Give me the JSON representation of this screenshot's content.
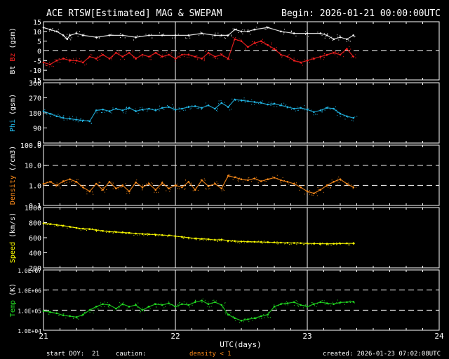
{
  "header": {
    "title": "ACE RTSW[Estimated] MAG & SWEPAM",
    "begin": "Begin: 2026-01-21 00:00:00UTC"
  },
  "footer": {
    "start_doy": "start DOY:  21",
    "caution": "caution:",
    "density_note": "density < 1",
    "created": "created: 2026-01-23 07:02:08UTC"
  },
  "colors": {
    "background": "#000000",
    "frame": "#ffffff",
    "bt": "#ffffff",
    "bz": "#ff2020",
    "phi": "#22b8e8",
    "density": "#ff8c1a",
    "speed": "#ffff00",
    "temp": "#22dd22"
  },
  "chart_data": [
    {
      "type": "scatter",
      "panel": "mag",
      "ylabel_parts": [
        {
          "text": "Bt",
          "color": "#ffffff"
        },
        {
          "text": " ",
          "color": "#ffffff"
        },
        {
          "text": "Bz",
          "color": "#ff2020"
        },
        {
          "text": " (gsm)",
          "color": "#ffffff"
        }
      ],
      "ylim": [
        -15,
        15
      ],
      "yticks": [
        15,
        10,
        5,
        0,
        -5,
        -10,
        -15
      ],
      "dashed": [
        0
      ],
      "series": [
        {
          "key": "bt",
          "color": "#ffffff",
          "x": [
            21.0,
            21.05,
            21.1,
            21.15,
            21.18,
            21.2,
            21.25,
            21.3,
            21.4,
            21.5,
            21.6,
            21.7,
            21.8,
            21.9,
            22.0,
            22.1,
            22.2,
            22.3,
            22.35,
            22.4,
            22.45,
            22.5,
            22.55,
            22.6,
            22.7,
            22.8,
            22.9,
            23.0,
            23.1,
            23.15,
            23.2,
            23.25,
            23.3,
            23.35
          ],
          "y": [
            12,
            11,
            10,
            8,
            6,
            8,
            9,
            8,
            7,
            8,
            8,
            7,
            8,
            8,
            8,
            8,
            9,
            8,
            8,
            8,
            11,
            10,
            10,
            11,
            12,
            10,
            9,
            9,
            9,
            8,
            6,
            7,
            6,
            8
          ]
        },
        {
          "key": "bz",
          "color": "#ff2020",
          "x": [
            21.0,
            21.05,
            21.1,
            21.15,
            21.2,
            21.25,
            21.3,
            21.35,
            21.4,
            21.45,
            21.5,
            21.55,
            21.6,
            21.65,
            21.7,
            21.75,
            21.8,
            21.85,
            21.9,
            21.95,
            22.0,
            22.05,
            22.1,
            22.15,
            22.2,
            22.25,
            22.3,
            22.35,
            22.4,
            22.45,
            22.5,
            22.55,
            22.6,
            22.65,
            22.7,
            22.75,
            22.8,
            22.85,
            22.9,
            22.95,
            23.0,
            23.05,
            23.1,
            23.15,
            23.2,
            23.25,
            23.3,
            23.35
          ],
          "y": [
            -6,
            -7,
            -5,
            -4,
            -5,
            -5,
            -6,
            -3,
            -4,
            -2,
            -4,
            -1,
            -3,
            -1,
            -4,
            -2,
            -3,
            -1,
            -3,
            -2,
            -4,
            -2,
            -2,
            -3,
            -4,
            -1,
            -3,
            -2,
            -4,
            6,
            5,
            2,
            4,
            5,
            3,
            1,
            -2,
            -3,
            -5,
            -6,
            -5,
            -4,
            -3,
            -2,
            -1,
            -2,
            1,
            -3
          ]
        }
      ]
    },
    {
      "type": "scatter",
      "panel": "phi",
      "ylabel_parts": [
        {
          "text": "Phi",
          "color": "#22b8e8"
        },
        {
          "text": " (gsm)",
          "color": "#ffffff"
        }
      ],
      "ylim": [
        0,
        360
      ],
      "yticks": [
        360,
        270,
        180,
        90,
        0
      ],
      "dashed": [],
      "series": [
        {
          "key": "phi",
          "color": "#22b8e8",
          "x": [
            21.0,
            21.05,
            21.1,
            21.15,
            21.2,
            21.25,
            21.3,
            21.35,
            21.4,
            21.45,
            21.5,
            21.55,
            21.6,
            21.65,
            21.7,
            21.75,
            21.8,
            21.85,
            21.9,
            21.95,
            22.0,
            22.05,
            22.1,
            22.15,
            22.2,
            22.25,
            22.3,
            22.35,
            22.4,
            22.45,
            22.5,
            22.55,
            22.6,
            22.65,
            22.7,
            22.75,
            22.8,
            22.85,
            22.9,
            22.95,
            23.0,
            23.05,
            23.1,
            23.15,
            23.2,
            23.25,
            23.3,
            23.35
          ],
          "y": [
            190,
            175,
            160,
            150,
            145,
            140,
            135,
            130,
            195,
            200,
            190,
            205,
            195,
            210,
            190,
            200,
            205,
            195,
            210,
            215,
            200,
            205,
            215,
            220,
            210,
            225,
            205,
            240,
            215,
            260,
            255,
            250,
            245,
            240,
            230,
            235,
            225,
            215,
            205,
            210,
            200,
            185,
            195,
            210,
            205,
            175,
            160,
            150
          ]
        }
      ]
    },
    {
      "type": "scatter",
      "panel": "density",
      "scale": "log",
      "ylabel_parts": [
        {
          "text": "Density",
          "color": "#ff8c1a"
        },
        {
          "text": " (/cm3)",
          "color": "#ffffff"
        }
      ],
      "ylim": [
        0.1,
        100
      ],
      "yticks": [
        100,
        10,
        1,
        0.1
      ],
      "ytick_labels": [
        "100.0",
        "10.0",
        "1.0",
        "0.1"
      ],
      "dashed": [
        10,
        1
      ],
      "series": [
        {
          "key": "density",
          "color": "#ff8c1a",
          "x": [
            21.0,
            21.05,
            21.1,
            21.15,
            21.2,
            21.25,
            21.3,
            21.35,
            21.4,
            21.45,
            21.5,
            21.55,
            21.6,
            21.65,
            21.7,
            21.75,
            21.8,
            21.85,
            21.9,
            21.95,
            22.0,
            22.05,
            22.1,
            22.15,
            22.2,
            22.25,
            22.3,
            22.35,
            22.4,
            22.45,
            22.5,
            22.55,
            22.6,
            22.65,
            22.7,
            22.75,
            22.8,
            22.85,
            22.9,
            22.95,
            23.0,
            23.05,
            23.1,
            23.15,
            23.2,
            23.25,
            23.3,
            23.35
          ],
          "y": [
            1.2,
            1.5,
            1.0,
            1.6,
            2.0,
            1.5,
            0.8,
            0.5,
            1.2,
            0.6,
            1.5,
            0.7,
            1.0,
            0.5,
            1.4,
            0.8,
            1.2,
            0.6,
            1.3,
            0.7,
            1.0,
            0.8,
            1.5,
            0.6,
            1.8,
            0.9,
            1.2,
            0.7,
            3.0,
            2.5,
            2.0,
            1.8,
            2.2,
            1.6,
            2.0,
            2.4,
            1.8,
            1.5,
            1.2,
            0.8,
            0.5,
            0.4,
            0.6,
            1.0,
            1.5,
            2.0,
            1.2,
            0.8
          ]
        }
      ]
    },
    {
      "type": "scatter",
      "panel": "speed",
      "ylabel_parts": [
        {
          "text": "Speed",
          "color": "#ffff00"
        },
        {
          "text": " (km/s)",
          "color": "#ffffff"
        }
      ],
      "ylim": [
        200,
        1000
      ],
      "yticks": [
        1000,
        800,
        600,
        400,
        200
      ],
      "dashed": [],
      "series": [
        {
          "key": "speed",
          "color": "#ffff00",
          "x": [
            21.0,
            21.05,
            21.1,
            21.15,
            21.2,
            21.25,
            21.3,
            21.35,
            21.4,
            21.45,
            21.5,
            21.55,
            21.6,
            21.65,
            21.7,
            21.75,
            21.8,
            21.85,
            21.9,
            21.95,
            22.0,
            22.05,
            22.1,
            22.15,
            22.2,
            22.25,
            22.3,
            22.35,
            22.4,
            22.45,
            22.5,
            22.55,
            22.6,
            22.65,
            22.7,
            22.75,
            22.8,
            22.85,
            22.9,
            22.95,
            23.0,
            23.05,
            23.1,
            23.15,
            23.2,
            23.25,
            23.3,
            23.35
          ],
          "y": [
            790,
            780,
            770,
            760,
            745,
            730,
            720,
            715,
            700,
            690,
            680,
            675,
            670,
            665,
            655,
            650,
            645,
            640,
            635,
            630,
            620,
            610,
            600,
            590,
            585,
            580,
            570,
            575,
            560,
            555,
            550,
            548,
            545,
            542,
            540,
            538,
            535,
            532,
            530,
            528,
            525,
            522,
            520,
            520,
            520,
            522,
            525,
            525
          ]
        }
      ]
    },
    {
      "type": "scatter",
      "panel": "temp",
      "scale": "log",
      "ylabel_parts": [
        {
          "text": "Temp",
          "color": "#22dd22"
        },
        {
          "text": " (K)",
          "color": "#ffffff"
        }
      ],
      "ylim": [
        10000,
        10000000
      ],
      "yticks": [
        10000000,
        1000000,
        100000,
        10000
      ],
      "ytick_labels": [
        "1.0E+07",
        "1.0E+06",
        "1.0E+05",
        "1.0E+04"
      ],
      "dashed": [
        1000000,
        100000
      ],
      "series": [
        {
          "key": "temp",
          "color": "#22dd22",
          "x": [
            21.0,
            21.05,
            21.1,
            21.15,
            21.2,
            21.25,
            21.3,
            21.35,
            21.4,
            21.45,
            21.5,
            21.55,
            21.6,
            21.65,
            21.7,
            21.75,
            21.8,
            21.85,
            21.9,
            21.95,
            22.0,
            22.05,
            22.1,
            22.15,
            22.2,
            22.25,
            22.3,
            22.35,
            22.4,
            22.45,
            22.5,
            22.55,
            22.6,
            22.65,
            22.7,
            22.75,
            22.8,
            22.85,
            22.9,
            22.95,
            23.0,
            23.05,
            23.1,
            23.15,
            23.2,
            23.25,
            23.3,
            23.35
          ],
          "y": [
            90000,
            80000,
            70000,
            55000,
            50000,
            45000,
            60000,
            100000,
            150000,
            200000,
            180000,
            120000,
            200000,
            150000,
            180000,
            100000,
            150000,
            200000,
            180000,
            220000,
            150000,
            200000,
            180000,
            250000,
            300000,
            200000,
            250000,
            180000,
            60000,
            40000,
            30000,
            35000,
            40000,
            50000,
            60000,
            150000,
            200000,
            220000,
            250000,
            180000,
            150000,
            200000,
            250000,
            220000,
            200000,
            240000,
            250000,
            260000
          ]
        }
      ]
    }
  ],
  "x_axis": {
    "range": [
      21,
      24
    ],
    "ticks": [
      "21",
      "22",
      "23",
      "24"
    ],
    "label": "UTC(days)"
  }
}
